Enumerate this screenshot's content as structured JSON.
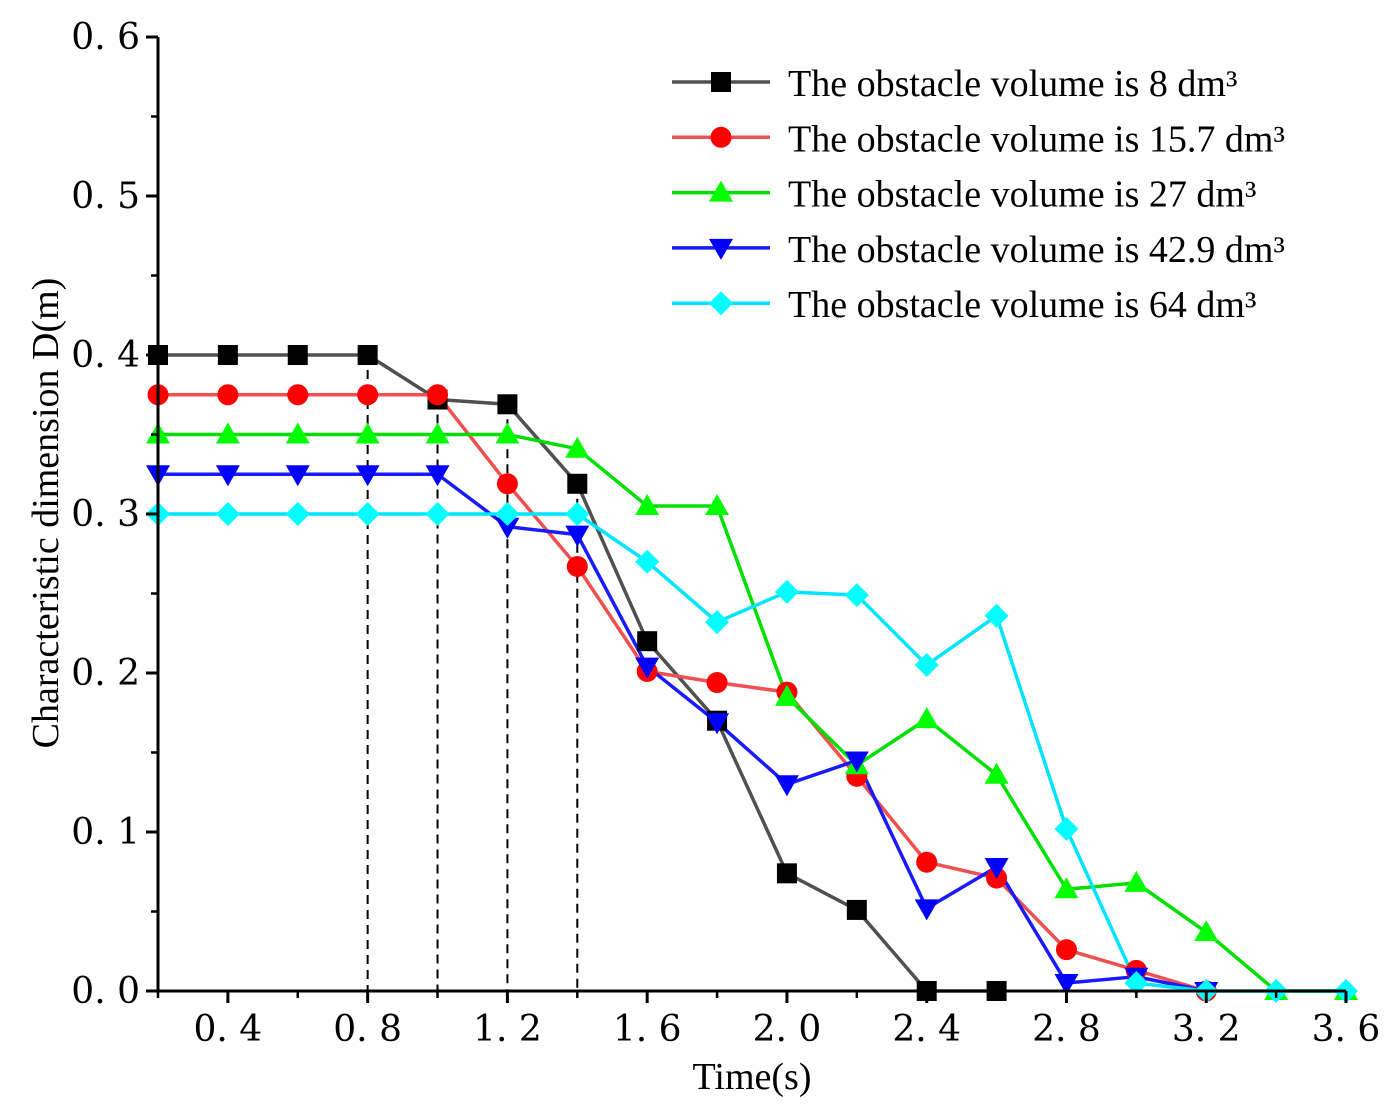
{
  "chart_data": {
    "type": "line",
    "title": "",
    "xlabel": "Time(s)",
    "ylabel": "Characteristic dimension D(m)",
    "xlim": [
      0.2,
      3.6
    ],
    "ylim": [
      0.0,
      0.6
    ],
    "x_ticks": [
      0.4,
      0.8,
      1.2,
      1.6,
      2.0,
      2.4,
      2.8,
      3.2,
      3.6
    ],
    "x_tick_labels": [
      "0. 4",
      "0. 8",
      "1. 2",
      "1. 6",
      "2. 0",
      "2. 4",
      "2. 8",
      "3. 2",
      "3. 6"
    ],
    "y_ticks": [
      0.0,
      0.1,
      0.2,
      0.3,
      0.4,
      0.5,
      0.6
    ],
    "y_tick_labels": [
      "0. 0",
      "0. 1",
      "0. 2",
      "0. 3",
      "0. 4",
      "0. 5",
      "0. 6"
    ],
    "x": [
      0.2,
      0.4,
      0.6,
      0.8,
      1.0,
      1.2,
      1.4,
      1.6,
      1.8,
      2.0,
      2.2,
      2.4,
      2.6,
      2.8,
      3.0,
      3.2,
      3.4,
      3.6
    ],
    "legend_position": "top-right",
    "grid": false,
    "reference_lines_x": [
      0.8,
      1.0,
      1.2,
      1.4
    ],
    "series": [
      {
        "name": "The obstacle volume is 8 dm³",
        "color": "#505050",
        "marker_color": "#000000",
        "marker": "square",
        "values": [
          0.4,
          0.4,
          0.4,
          0.4,
          0.372,
          0.369,
          0.319,
          0.22,
          0.17,
          0.074,
          0.051,
          0.0,
          0.0,
          null,
          null,
          null,
          null,
          null
        ]
      },
      {
        "name": "The obstacle volume is 15.7 dm³",
        "color": "#f05050",
        "marker_color": "#ff0000",
        "marker": "circle",
        "values": [
          0.375,
          0.375,
          0.375,
          0.375,
          0.375,
          0.319,
          0.267,
          0.201,
          0.194,
          0.188,
          0.135,
          0.081,
          0.071,
          0.026,
          0.013,
          0.0,
          null,
          null
        ]
      },
      {
        "name": "The obstacle volume is 27 dm³",
        "color": "#00e000",
        "marker_color": "#00ff00",
        "marker": "triangle-up",
        "values": [
          0.35,
          0.35,
          0.35,
          0.35,
          0.35,
          0.35,
          0.341,
          0.305,
          0.305,
          0.185,
          0.142,
          0.171,
          0.136,
          0.064,
          0.068,
          0.037,
          0.0,
          0.0
        ]
      },
      {
        "name": "The obstacle volume is 42.9 dm³",
        "color": "#1a1aff",
        "marker_color": "#0000ff",
        "marker": "triangle-down",
        "values": [
          0.325,
          0.325,
          0.325,
          0.325,
          0.325,
          0.292,
          0.287,
          0.204,
          0.169,
          0.13,
          0.145,
          0.052,
          0.078,
          0.005,
          0.009,
          0.0,
          null,
          null
        ]
      },
      {
        "name": "The obstacle volume is 64 dm³",
        "color": "#00e5ff",
        "marker_color": "#00ffff",
        "marker": "diamond",
        "values": [
          0.3,
          0.3,
          0.3,
          0.3,
          0.3,
          0.3,
          0.3,
          0.27,
          0.232,
          0.251,
          0.249,
          0.205,
          0.236,
          0.102,
          0.005,
          0.0,
          0.0,
          0.0
        ]
      }
    ]
  }
}
